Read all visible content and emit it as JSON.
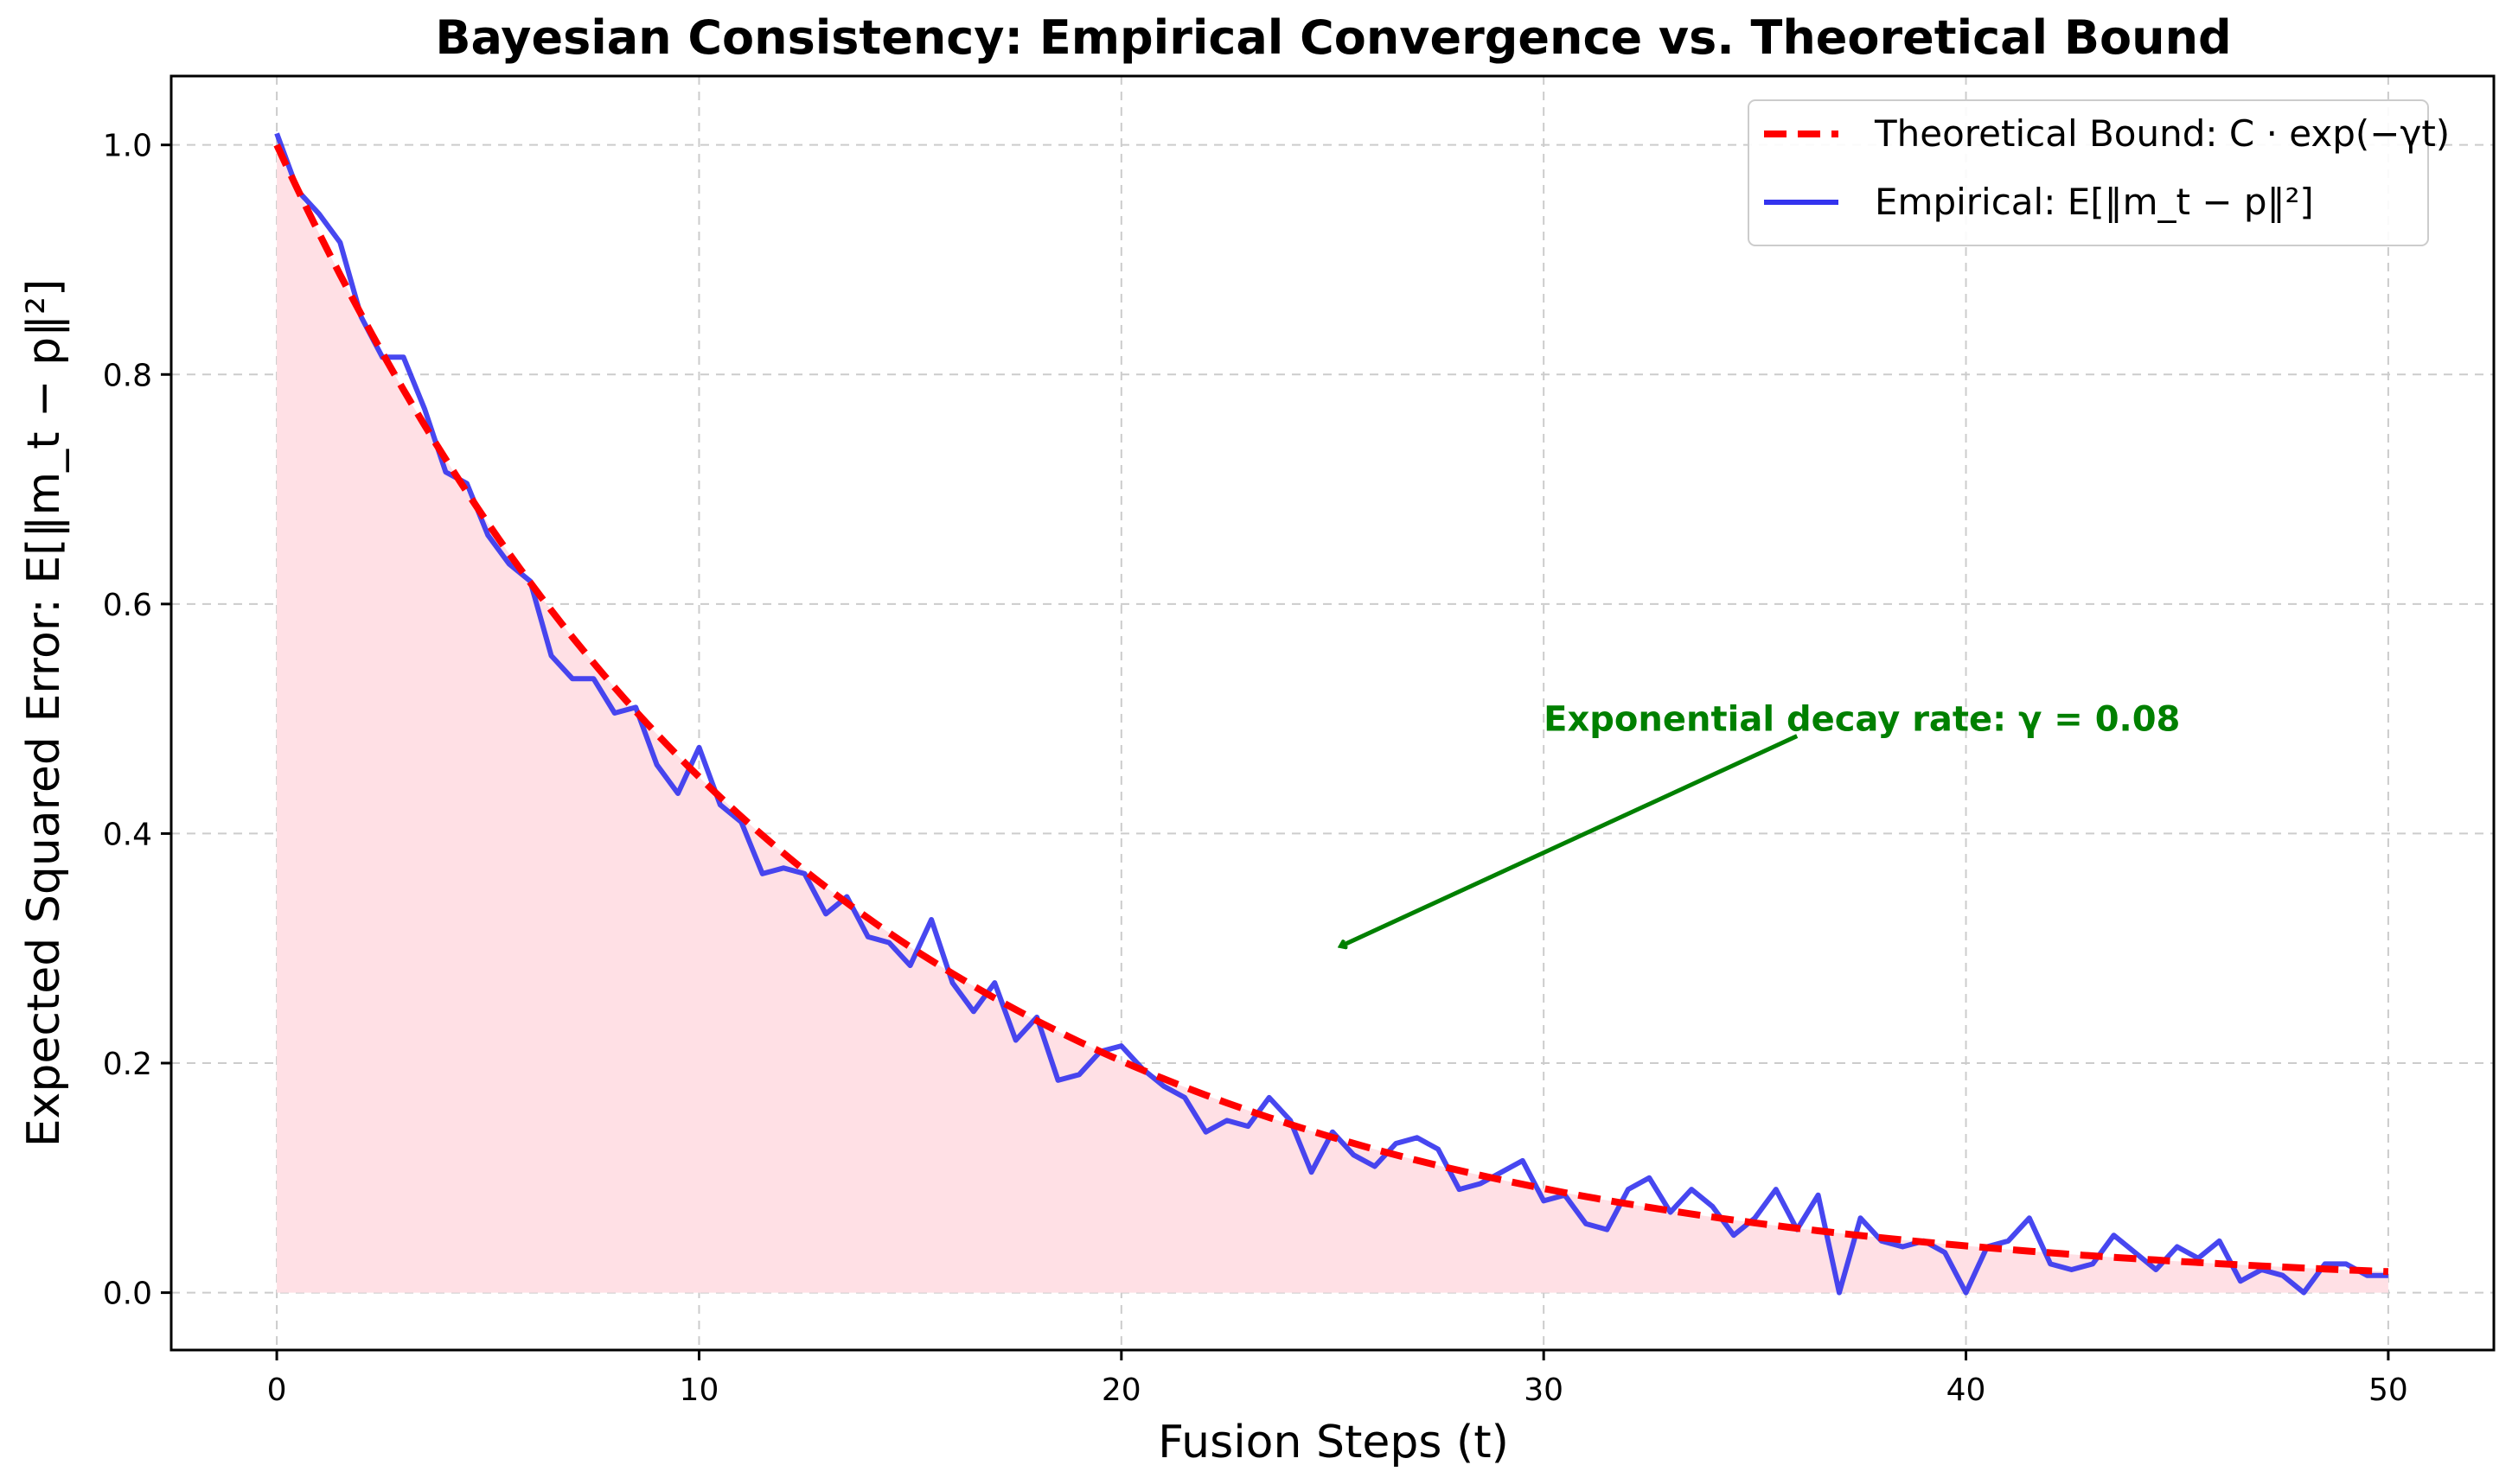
{
  "chart_data": {
    "type": "line",
    "title": "Bayesian Consistency: Empirical Convergence vs. Theoretical Bound",
    "xlabel": "Fusion Steps (t)",
    "ylabel": "Expected Squared Error: E[‖m_t − p‖²]",
    "xlim": [
      -2.5,
      52.5
    ],
    "ylim": [
      -0.05,
      1.06
    ],
    "xticks": [
      0,
      10,
      20,
      30,
      40,
      50
    ],
    "yticks": [
      0.0,
      0.2,
      0.4,
      0.6,
      0.8,
      1.0
    ],
    "xtick_labels": [
      "0",
      "10",
      "20",
      "30",
      "40",
      "50"
    ],
    "ytick_labels": [
      "0.0",
      "0.2",
      "0.4",
      "0.6",
      "0.8",
      "1.0"
    ],
    "grid": true,
    "legend_position": "top-right",
    "series": [
      {
        "name": "Theoretical Bound",
        "legend_label": "Theoretical Bound: C · exp(−γt)",
        "style": "dashed",
        "color": "#ff0000",
        "function": "exp",
        "C": 1.0,
        "gamma": 0.08,
        "x_range": [
          0,
          50
        ],
        "fill_under": true,
        "fill_color": "#ffe0e5"
      },
      {
        "name": "Empirical",
        "legend_label": "Empirical: E[‖m_t − p‖²]",
        "style": "solid",
        "color": "#3333ee",
        "x_range": [
          0,
          50
        ],
        "values": [
          1.01,
          0.96,
          0.94,
          0.915,
          0.85,
          0.815,
          0.815,
          0.77,
          0.715,
          0.705,
          0.66,
          0.635,
          0.62,
          0.555,
          0.535,
          0.535,
          0.505,
          0.51,
          0.46,
          0.435,
          0.475,
          0.425,
          0.41,
          0.365,
          0.37,
          0.365,
          0.33,
          0.345,
          0.31,
          0.305,
          0.285,
          0.325,
          0.27,
          0.245,
          0.27,
          0.22,
          0.24,
          0.185,
          0.19,
          0.21,
          0.215,
          0.195,
          0.18,
          0.17,
          0.14,
          0.15,
          0.145,
          0.17,
          0.15,
          0.105,
          0.14,
          0.12,
          0.11,
          0.13,
          0.135,
          0.125,
          0.09,
          0.095,
          0.105,
          0.115,
          0.08,
          0.085,
          0.06,
          0.055,
          0.09,
          0.1,
          0.07,
          0.09,
          0.075,
          0.05,
          0.065,
          0.09,
          0.055,
          0.085,
          0.0,
          0.065,
          0.045,
          0.04,
          0.045,
          0.035,
          0.0,
          0.04,
          0.045,
          0.065,
          0.025,
          0.02,
          0.025,
          0.05,
          0.035,
          0.02,
          0.04,
          0.03,
          0.045,
          0.01,
          0.02,
          0.015,
          0.0,
          0.025,
          0.025,
          0.015,
          0.015
        ]
      }
    ],
    "annotations": [
      {
        "text": "Exponential decay rate: γ = 0.08",
        "color": "#008000",
        "text_at": [
          30,
          0.5
        ],
        "arrow_from": [
          36,
          0.485
        ],
        "arrow_to": [
          25.2,
          0.302
        ]
      }
    ]
  }
}
